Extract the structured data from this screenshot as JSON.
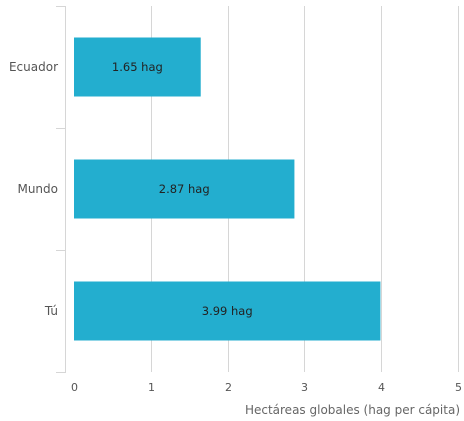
{
  "chart_data": {
    "type": "bar",
    "orientation": "horizontal",
    "categories": [
      "Ecuador",
      "Mundo",
      "Tú"
    ],
    "values": [
      1.65,
      2.87,
      3.99
    ],
    "data_labels": [
      "1.65 hag",
      "2.87 hag",
      "3.99 hag"
    ],
    "xlabel": "Hectáreas globales (hag per cápita)",
    "ylabel": "",
    "xlim": [
      0,
      5
    ],
    "x_ticks": [
      0,
      1,
      2,
      3,
      4,
      5
    ],
    "grid": "vertical",
    "legend": "none",
    "bar_color": "#23AECF",
    "grid_color": "#D6D6D6"
  }
}
